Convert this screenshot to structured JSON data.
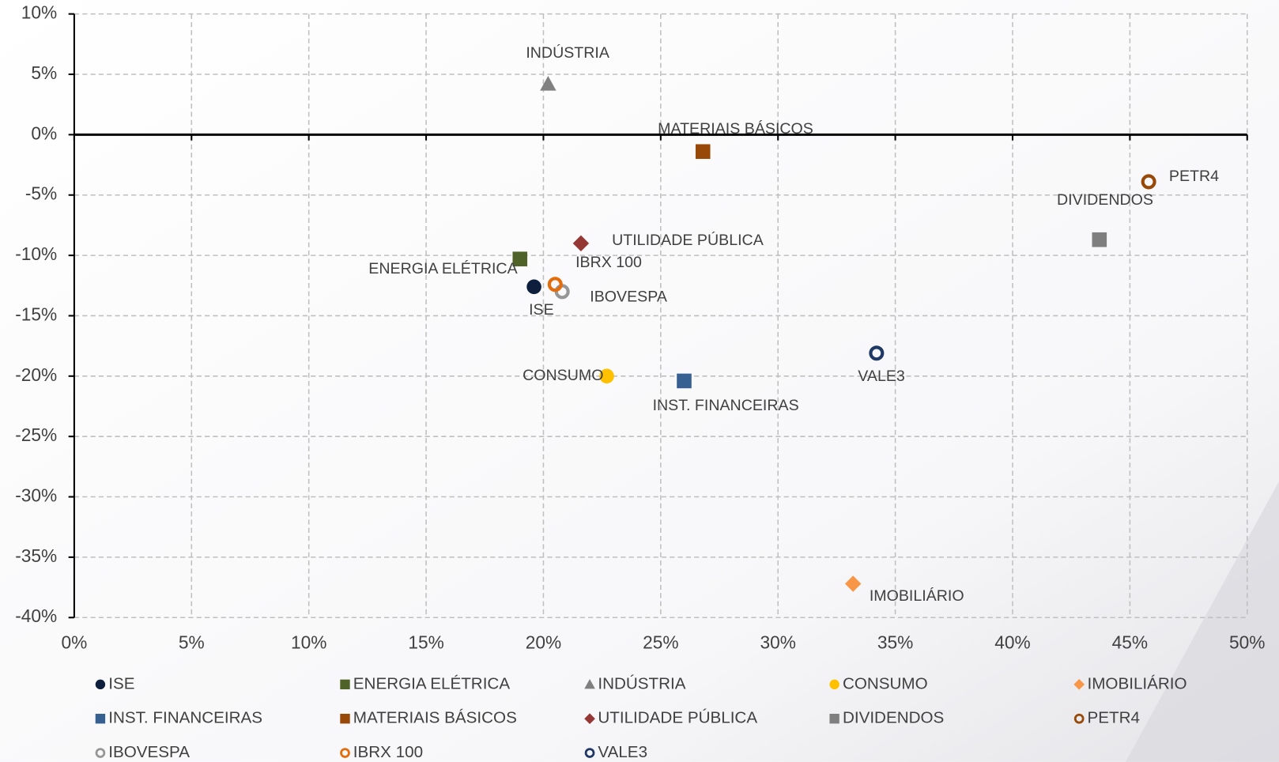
{
  "chart_data": {
    "type": "scatter",
    "xlim": [
      0,
      50
    ],
    "ylim": [
      -40,
      10
    ],
    "xticks": [
      {
        "value": 0,
        "label": "0%"
      },
      {
        "value": 5,
        "label": "5%"
      },
      {
        "value": 10,
        "label": "10%"
      },
      {
        "value": 15,
        "label": "15%"
      },
      {
        "value": 20,
        "label": "20%"
      },
      {
        "value": 25,
        "label": "25%"
      },
      {
        "value": 30,
        "label": "30%"
      },
      {
        "value": 35,
        "label": "35%"
      },
      {
        "value": 40,
        "label": "40%"
      },
      {
        "value": 45,
        "label": "45%"
      },
      {
        "value": 50,
        "label": "50%"
      }
    ],
    "yticks": [
      {
        "value": 10,
        "label": "10%"
      },
      {
        "value": 5,
        "label": "5%"
      },
      {
        "value": 0,
        "label": "0%"
      },
      {
        "value": -5,
        "label": "-5%"
      },
      {
        "value": -10,
        "label": "-10%"
      },
      {
        "value": -15,
        "label": "-15%"
      },
      {
        "value": -20,
        "label": "-20%"
      },
      {
        "value": -25,
        "label": "-25%"
      },
      {
        "value": -30,
        "label": "-30%"
      },
      {
        "value": -35,
        "label": "-35%"
      },
      {
        "value": -40,
        "label": "-40%"
      }
    ],
    "grid": true,
    "legend": "bottom",
    "series": [
      {
        "name": "ISE",
        "color": "#0d1f3c",
        "marker": "circle",
        "x": [
          19.6
        ],
        "values": [
          -12.6
        ]
      },
      {
        "name": "ENERGIA ELÉTRICA",
        "color": "#4f6228",
        "marker": "square",
        "x": [
          19.0
        ],
        "values": [
          -10.3
        ]
      },
      {
        "name": "INDÚSTRIA",
        "color": "#808080",
        "marker": "triangle",
        "x": [
          20.2
        ],
        "values": [
          4.2
        ]
      },
      {
        "name": "CONSUMO",
        "color": "#ffc000",
        "marker": "circle",
        "x": [
          22.7
        ],
        "values": [
          -20.0
        ]
      },
      {
        "name": "IMOBILIÁRIO",
        "color": "#f79646",
        "marker": "diamond",
        "x": [
          33.2
        ],
        "values": [
          -37.2
        ]
      },
      {
        "name": "INST. FINANCEIRAS",
        "color": "#366092",
        "marker": "square",
        "x": [
          26.0
        ],
        "values": [
          -20.4
        ]
      },
      {
        "name": "MATERIAIS BÁSICOS",
        "color": "#984807",
        "marker": "square",
        "x": [
          26.8
        ],
        "values": [
          -1.4
        ]
      },
      {
        "name": "UTILIDADE PÚBLICA",
        "color": "#953735",
        "marker": "diamond",
        "x": [
          21.6
        ],
        "values": [
          -9.0
        ]
      },
      {
        "name": "DIVIDENDOS",
        "color": "#7f7f7f",
        "marker": "square",
        "x": [
          43.7
        ],
        "values": [
          -8.7
        ]
      },
      {
        "name": "PETR4",
        "color": "#984807",
        "marker": "ring",
        "x": [
          45.8
        ],
        "values": [
          -3.9
        ]
      },
      {
        "name": "IBOVESPA",
        "color": "#969696",
        "marker": "ring",
        "x": [
          20.8
        ],
        "values": [
          -13.0
        ]
      },
      {
        "name": "IBRX 100",
        "color": "#e46c0a",
        "marker": "ring",
        "x": [
          20.5
        ],
        "values": [
          -12.4
        ]
      },
      {
        "name": "VALE3",
        "color": "#1f3864",
        "marker": "ring",
        "x": [
          34.2
        ],
        "values": [
          -18.1
        ]
      }
    ]
  }
}
